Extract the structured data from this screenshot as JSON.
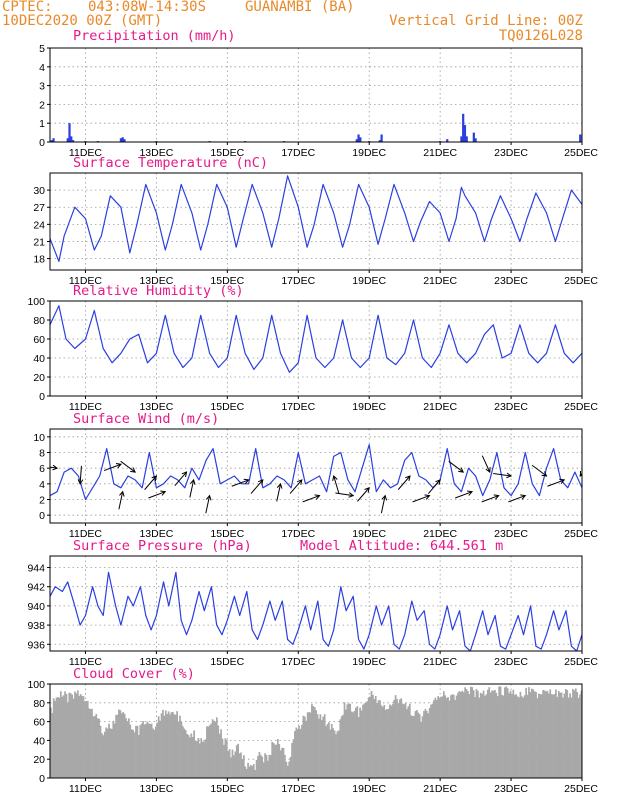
{
  "header": {
    "source": "CPTEC:",
    "coords": "043:08W-14:30S",
    "station": "GUANAMBI (BA)",
    "date": "10DEC2020 00Z (GMT)",
    "grid_note": "Vertical Grid Line: 00Z",
    "code": "TQ0126L028",
    "model_altitude": "Model Altitude: 644.561 m"
  },
  "x_axis": {
    "labels": [
      "11DEC",
      "13DEC",
      "15DEC",
      "17DEC",
      "19DEC",
      "21DEC",
      "23DEC",
      "25DEC"
    ],
    "label_days": [
      1,
      3,
      5,
      7,
      9,
      11,
      13,
      15
    ],
    "start_day": 0,
    "end_day": 15
  },
  "chart_data": [
    {
      "type": "bar",
      "title": "Precipitation (mm/h)",
      "ylim": [
        0,
        5
      ],
      "yticks": [
        0,
        1,
        2,
        3,
        4,
        5
      ],
      "bars": [
        [
          0.05,
          0.1
        ],
        [
          0.1,
          0.2
        ],
        [
          0.5,
          0.2
        ],
        [
          0.55,
          1.0
        ],
        [
          0.6,
          0.3
        ],
        [
          0.65,
          0.1
        ],
        [
          1.0,
          0.05
        ],
        [
          1.35,
          0.05
        ],
        [
          2.0,
          0.2
        ],
        [
          2.05,
          0.25
        ],
        [
          2.1,
          0.15
        ],
        [
          3.0,
          0.05
        ],
        [
          4.5,
          0.05
        ],
        [
          5.5,
          0.05
        ],
        [
          6.6,
          0.05
        ],
        [
          8.65,
          0.15
        ],
        [
          8.7,
          0.4
        ],
        [
          8.75,
          0.25
        ],
        [
          9.0,
          0.05
        ],
        [
          9.3,
          0.1
        ],
        [
          9.35,
          0.4
        ],
        [
          11.0,
          0.05
        ],
        [
          11.2,
          0.15
        ],
        [
          11.6,
          0.3
        ],
        [
          11.65,
          1.5
        ],
        [
          11.7,
          0.9
        ],
        [
          11.75,
          0.3
        ],
        [
          11.95,
          0.5
        ],
        [
          12.0,
          0.2
        ],
        [
          14.95,
          0.4
        ]
      ],
      "series_color": "#2b3fe0"
    },
    {
      "type": "line",
      "title": "Surface Temperature (nC)",
      "ylim": [
        16,
        33
      ],
      "yticks": [
        18,
        21,
        24,
        27,
        30
      ],
      "x": [
        0,
        0.25,
        0.4,
        0.7,
        1.0,
        1.25,
        1.45,
        1.7,
        2.0,
        2.25,
        2.45,
        2.7,
        3.0,
        3.25,
        3.45,
        3.7,
        4.0,
        4.25,
        4.45,
        4.7,
        5.0,
        5.25,
        5.45,
        5.7,
        6.0,
        6.25,
        6.45,
        6.7,
        7.0,
        7.25,
        7.45,
        7.7,
        8.0,
        8.25,
        8.45,
        8.7,
        9.0,
        9.25,
        9.45,
        9.7,
        10.0,
        10.25,
        10.45,
        10.7,
        11.0,
        11.25,
        11.45,
        11.6,
        11.7,
        12.0,
        12.25,
        12.45,
        12.7,
        13.0,
        13.25,
        13.45,
        13.7,
        14.0,
        14.25,
        14.45,
        14.7,
        15.0
      ],
      "values": [
        21.5,
        17.5,
        22,
        27,
        25,
        19.5,
        22,
        29,
        27,
        19,
        24,
        31,
        26,
        19.5,
        24,
        31,
        26,
        19.5,
        24,
        31,
        27,
        20,
        25,
        31,
        26,
        20,
        25,
        32.5,
        27,
        20,
        24,
        31,
        26,
        20,
        24,
        31,
        27,
        20.5,
        25,
        31,
        26,
        21,
        24.5,
        28,
        26,
        21,
        25,
        30.5,
        29,
        26,
        21,
        25,
        29,
        25,
        21,
        25,
        29.5,
        26,
        21,
        25,
        30,
        27.5
      ],
      "series_color": "#2b3fe0"
    },
    {
      "type": "line",
      "title": "Relative Humidity (%)",
      "ylim": [
        0,
        100
      ],
      "yticks": [
        0,
        20,
        40,
        60,
        80,
        100
      ],
      "x": [
        0,
        0.25,
        0.45,
        0.7,
        1.0,
        1.25,
        1.5,
        1.75,
        2.0,
        2.25,
        2.5,
        2.75,
        3.0,
        3.25,
        3.5,
        3.75,
        4.0,
        4.25,
        4.5,
        4.75,
        5.0,
        5.25,
        5.5,
        5.75,
        6.0,
        6.25,
        6.5,
        6.75,
        7.0,
        7.25,
        7.5,
        7.75,
        8.0,
        8.25,
        8.5,
        8.75,
        9.0,
        9.25,
        9.5,
        9.75,
        10.0,
        10.25,
        10.5,
        10.75,
        11.0,
        11.25,
        11.5,
        11.75,
        12.0,
        12.25,
        12.5,
        12.75,
        13.0,
        13.25,
        13.5,
        13.75,
        14.0,
        14.25,
        14.5,
        14.75,
        15.0
      ],
      "values": [
        75,
        95,
        60,
        50,
        60,
        90,
        50,
        35,
        45,
        60,
        65,
        35,
        45,
        85,
        45,
        30,
        40,
        85,
        45,
        30,
        40,
        85,
        45,
        28,
        40,
        85,
        45,
        25,
        35,
        85,
        40,
        30,
        40,
        80,
        40,
        30,
        40,
        85,
        40,
        33,
        45,
        80,
        40,
        30,
        45,
        75,
        45,
        35,
        45,
        65,
        75,
        40,
        45,
        75,
        45,
        35,
        45,
        75,
        45,
        35,
        45
      ],
      "series_color": "#2b3fe0"
    },
    {
      "type": "line",
      "title": "Surface Wind (m/s)",
      "ylim": [
        -1,
        11
      ],
      "yticks": [
        0,
        2,
        4,
        6,
        8,
        10
      ],
      "x": [
        0,
        0.2,
        0.4,
        0.6,
        0.8,
        1.0,
        1.2,
        1.4,
        1.6,
        1.8,
        2.0,
        2.2,
        2.4,
        2.6,
        2.8,
        3.0,
        3.2,
        3.4,
        3.6,
        3.8,
        4.0,
        4.2,
        4.4,
        4.6,
        4.8,
        5.0,
        5.2,
        5.4,
        5.6,
        5.8,
        6.0,
        6.2,
        6.4,
        6.6,
        6.8,
        7.0,
        7.2,
        7.4,
        7.6,
        7.8,
        8.0,
        8.2,
        8.4,
        8.6,
        8.8,
        9.0,
        9.2,
        9.4,
        9.6,
        9.8,
        10.0,
        10.2,
        10.4,
        10.6,
        10.8,
        11.0,
        11.2,
        11.4,
        11.6,
        11.8,
        12.0,
        12.2,
        12.4,
        12.6,
        12.8,
        13.0,
        13.2,
        13.4,
        13.6,
        13.8,
        14.0,
        14.2,
        14.4,
        14.6,
        14.8,
        15.0
      ],
      "values": [
        2.5,
        3,
        5.5,
        6,
        5,
        2,
        3.5,
        5,
        8.5,
        4,
        3.5,
        5,
        4.5,
        3.5,
        8,
        3.5,
        4,
        5,
        4.5,
        3.5,
        6,
        4.5,
        7,
        8.5,
        4,
        4.5,
        5,
        4,
        4,
        8.5,
        3.5,
        4,
        5,
        4.5,
        3.5,
        8,
        4,
        4.5,
        5,
        3,
        7.5,
        8,
        4.5,
        3,
        6,
        9,
        3,
        4.5,
        3.5,
        4,
        7,
        8,
        5,
        4.5,
        3.5,
        4.5,
        8.5,
        4,
        3,
        6,
        5,
        2.5,
        4.5,
        8,
        3.5,
        2.5,
        4,
        8,
        4,
        2.5,
        6,
        8.5,
        4.5,
        3.5,
        5.5,
        3.5
      ],
      "wind_barbs": [
        [
          0.2,
          6.0,
          3.0
        ],
        [
          0.85,
          4.0,
          1.5
        ],
        [
          2.0,
          6.5,
          3.5
        ],
        [
          2.05,
          3.0,
          4.5
        ],
        [
          2.4,
          5.5,
          2.5
        ],
        [
          3.0,
          5.0,
          4.0
        ],
        [
          3.25,
          3.0,
          3.5
        ],
        [
          3.85,
          5.5,
          4.0
        ],
        [
          4.05,
          4.5,
          4.5
        ],
        [
          4.5,
          2.5,
          4.5
        ],
        [
          5.6,
          4.5,
          3.5
        ],
        [
          6.0,
          4.5,
          4.0
        ],
        [
          6.5,
          4.0,
          4.5
        ],
        [
          7.1,
          4.5,
          4.0
        ],
        [
          7.6,
          2.5,
          3.5
        ],
        [
          8.0,
          5.0,
          5.0
        ],
        [
          8.55,
          2.5,
          3.0
        ],
        [
          9.0,
          3.5,
          4.0
        ],
        [
          9.45,
          2.5,
          4.5
        ],
        [
          10.15,
          5.0,
          4.0
        ],
        [
          10.7,
          2.5,
          3.5
        ],
        [
          11.0,
          4.5,
          4.0
        ],
        [
          11.65,
          5.5,
          2.5
        ],
        [
          11.9,
          3.0,
          3.5
        ],
        [
          12.4,
          5.5,
          2.0
        ],
        [
          12.65,
          2.5,
          3.5
        ],
        [
          13.0,
          5.0,
          3.0
        ],
        [
          13.4,
          2.5,
          3.5
        ],
        [
          14.0,
          5.0,
          2.5
        ],
        [
          14.5,
          4.5,
          3.5
        ],
        [
          14.95,
          5.0,
          1.0
        ]
      ],
      "series_color": "#2b3fe0"
    },
    {
      "type": "line",
      "title": "Surface Pressure (hPa)",
      "ylim": [
        935.3,
        945.2
      ],
      "yticks": [
        936,
        938,
        940,
        942,
        944
      ],
      "x": [
        0,
        0.15,
        0.35,
        0.5,
        0.7,
        0.85,
        1.0,
        1.2,
        1.35,
        1.5,
        1.65,
        1.85,
        2.0,
        2.2,
        2.35,
        2.55,
        2.7,
        2.85,
        3.0,
        3.2,
        3.35,
        3.55,
        3.7,
        3.85,
        4.0,
        4.2,
        4.35,
        4.55,
        4.7,
        4.85,
        5.0,
        5.2,
        5.35,
        5.55,
        5.7,
        5.85,
        6.0,
        6.2,
        6.35,
        6.55,
        6.7,
        6.85,
        7.0,
        7.2,
        7.35,
        7.55,
        7.7,
        7.85,
        8.0,
        8.2,
        8.35,
        8.55,
        8.7,
        8.85,
        9.0,
        9.2,
        9.35,
        9.55,
        9.7,
        9.85,
        10.0,
        10.2,
        10.35,
        10.55,
        10.7,
        10.85,
        11.0,
        11.2,
        11.35,
        11.55,
        11.7,
        11.85,
        12.0,
        12.2,
        12.35,
        12.55,
        12.7,
        12.85,
        13.0,
        13.2,
        13.35,
        13.55,
        13.7,
        13.85,
        14.0,
        14.2,
        14.35,
        14.55,
        14.7,
        14.85,
        15.0
      ],
      "values": [
        941,
        942,
        941.5,
        942.5,
        940,
        938,
        939,
        942,
        940,
        939,
        943.5,
        940,
        938,
        941,
        940,
        942,
        939,
        937.5,
        939,
        942.5,
        940,
        943.5,
        938.5,
        937,
        938.5,
        941.5,
        939.5,
        942,
        938,
        937,
        938.5,
        941,
        939,
        941.5,
        937.5,
        936.5,
        938,
        940.5,
        938.5,
        940.5,
        936.5,
        936,
        937.5,
        940,
        937.5,
        940.5,
        936.5,
        935.8,
        937.5,
        942,
        939.5,
        941,
        936.5,
        935.5,
        937,
        940,
        938,
        940,
        936,
        935.5,
        937,
        940.5,
        938.5,
        939.5,
        936,
        935.5,
        937,
        940,
        937.5,
        939.5,
        935.8,
        935.3,
        937,
        939.5,
        937,
        939,
        935.8,
        935.5,
        937,
        939,
        937,
        940,
        935.8,
        935.5,
        937,
        939.5,
        937.5,
        939.5,
        935.8,
        935.3,
        937
      ],
      "series_color": "#2b3fe0"
    },
    {
      "type": "area",
      "title": "Cloud Cover (%)",
      "ylim": [
        0,
        100
      ],
      "yticks": [
        0,
        20,
        40,
        60,
        80,
        100
      ],
      "x": [
        0,
        0.1,
        0.3,
        0.5,
        0.7,
        0.9,
        1.1,
        1.3,
        1.5,
        1.7,
        1.9,
        2.1,
        2.3,
        2.5,
        2.7,
        2.9,
        3.1,
        3.3,
        3.5,
        3.7,
        3.9,
        4.1,
        4.3,
        4.5,
        4.7,
        4.9,
        5.1,
        5.3,
        5.5,
        5.7,
        5.9,
        6.1,
        6.3,
        6.5,
        6.7,
        6.9,
        7.1,
        7.3,
        7.5,
        7.7,
        7.9,
        8.1,
        8.3,
        8.5,
        8.7,
        8.9,
        9.1,
        9.3,
        9.5,
        9.7,
        9.9,
        10.1,
        10.3,
        10.5,
        10.7,
        10.9,
        11.1,
        11.3,
        11.5,
        11.7,
        11.9,
        12.1,
        12.3,
        12.5,
        12.7,
        12.9,
        13.1,
        13.3,
        13.5,
        13.7,
        13.9,
        14.1,
        14.3,
        14.5,
        14.7,
        14.9,
        15.0
      ],
      "values": [
        75,
        88,
        95,
        90,
        98,
        95,
        85,
        70,
        55,
        60,
        75,
        70,
        60,
        55,
        68,
        62,
        70,
        80,
        75,
        65,
        55,
        50,
        45,
        70,
        65,
        45,
        30,
        40,
        20,
        15,
        30,
        25,
        45,
        40,
        20,
        55,
        65,
        80,
        75,
        70,
        60,
        55,
        85,
        80,
        75,
        90,
        95,
        85,
        80,
        90,
        85,
        80,
        75,
        70,
        85,
        90,
        95,
        92,
        95,
        98,
        97,
        96,
        97,
        98,
        99,
        98,
        97,
        96,
        97,
        95,
        96,
        97,
        95,
        96,
        96,
        96,
        97
      ],
      "series_color": "#a8a8a8"
    }
  ]
}
